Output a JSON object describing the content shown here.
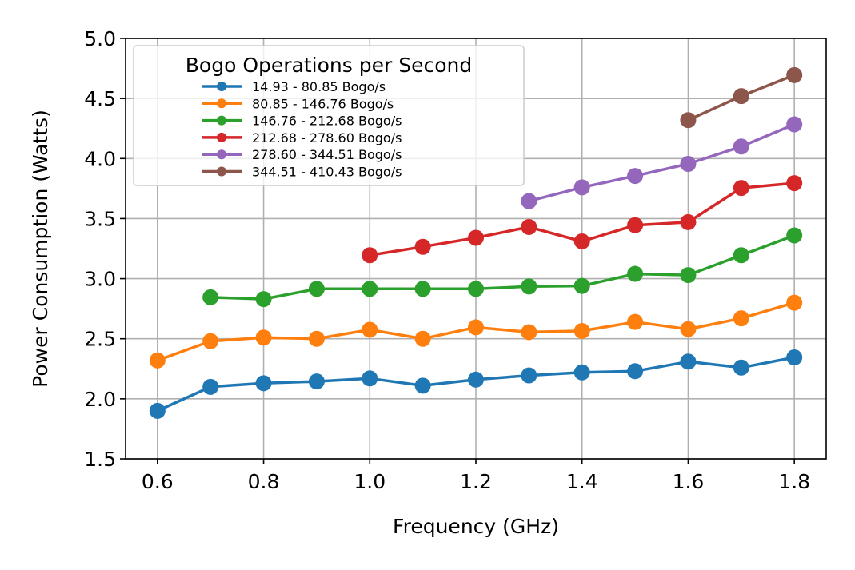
{
  "chart_data": {
    "type": "line",
    "title": "",
    "xlabel": "Frequency (GHz)",
    "ylabel": "Power Consumption (Watts)",
    "xlim": [
      0.54,
      1.86
    ],
    "ylim": [
      1.5,
      5.0
    ],
    "xticks": [
      0.6,
      0.8,
      1.0,
      1.2,
      1.4,
      1.6,
      1.8
    ],
    "xtick_labels": [
      "0.6",
      "0.8",
      "1.0",
      "1.2",
      "1.4",
      "1.6",
      "1.8"
    ],
    "yticks": [
      1.5,
      2.0,
      2.5,
      3.0,
      3.5,
      4.0,
      4.5,
      5.0
    ],
    "ytick_labels": [
      "1.5",
      "2.0",
      "2.5",
      "3.0",
      "3.5",
      "4.0",
      "4.5",
      "5.0"
    ],
    "grid": true,
    "legend": {
      "title": "Bogo Operations per Second",
      "location": "upper-left"
    },
    "series": [
      {
        "name": "14.93 - 80.85 Bogo/s",
        "color": "#1f77b4",
        "x": [
          0.6,
          0.7,
          0.8,
          0.9,
          1.0,
          1.1,
          1.2,
          1.3,
          1.4,
          1.5,
          1.6,
          1.7,
          1.8
        ],
        "y": [
          1.9,
          2.1,
          2.13,
          2.145,
          2.17,
          2.11,
          2.16,
          2.195,
          2.22,
          2.23,
          2.31,
          2.26,
          2.345
        ]
      },
      {
        "name": "80.85 - 146.76 Bogo/s",
        "color": "#ff7f0e",
        "x": [
          0.6,
          0.7,
          0.8,
          0.9,
          1.0,
          1.1,
          1.2,
          1.3,
          1.4,
          1.5,
          1.6,
          1.7,
          1.8
        ],
        "y": [
          2.32,
          2.48,
          2.51,
          2.5,
          2.575,
          2.5,
          2.595,
          2.555,
          2.565,
          2.64,
          2.58,
          2.67,
          2.8
        ]
      },
      {
        "name": "146.76 - 212.68 Bogo/s",
        "color": "#2ca02c",
        "x": [
          0.7,
          0.8,
          0.9,
          1.0,
          1.1,
          1.2,
          1.3,
          1.4,
          1.5,
          1.6,
          1.7,
          1.8
        ],
        "y": [
          2.845,
          2.83,
          2.915,
          2.915,
          2.915,
          2.915,
          2.935,
          2.94,
          3.04,
          3.03,
          3.195,
          3.36
        ]
      },
      {
        "name": "212.68 - 278.60 Bogo/s",
        "color": "#d62728",
        "x": [
          1.0,
          1.1,
          1.2,
          1.3,
          1.4,
          1.5,
          1.6,
          1.7,
          1.8
        ],
        "y": [
          3.195,
          3.265,
          3.34,
          3.43,
          3.31,
          3.445,
          3.47,
          3.755,
          3.795
        ]
      },
      {
        "name": "278.60 - 344.51 Bogo/s",
        "color": "#9467bd",
        "x": [
          1.3,
          1.4,
          1.5,
          1.6,
          1.7,
          1.8
        ],
        "y": [
          3.645,
          3.76,
          3.855,
          3.955,
          4.1,
          4.285
        ]
      },
      {
        "name": "344.51 - 410.43 Bogo/s",
        "color": "#8c564b",
        "x": [
          1.6,
          1.7,
          1.8
        ],
        "y": [
          4.32,
          4.52,
          4.695
        ]
      }
    ]
  }
}
